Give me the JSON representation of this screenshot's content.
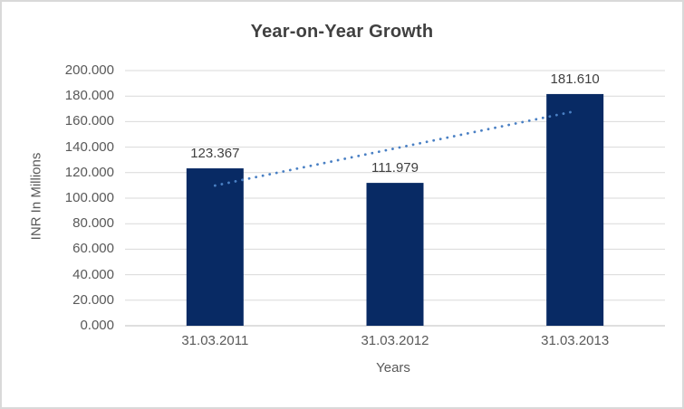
{
  "chart_data": {
    "type": "bar",
    "title": "Year-on-Year Growth",
    "categories": [
      "31.03.2011",
      "31.03.2012",
      "31.03.2013"
    ],
    "values": [
      123.367,
      111.979,
      181.61
    ],
    "data_labels": [
      "123.367",
      "111.979",
      "181.610"
    ],
    "xlabel": "Years",
    "ylabel": "INR In Millions",
    "ylim": [
      0,
      200
    ],
    "ytick_step": 20,
    "ytick_labels": [
      "0.000",
      "20.000",
      "40.000",
      "60.000",
      "80.000",
      "100.000",
      "120.000",
      "140.000",
      "160.000",
      "180.000",
      "200.000"
    ],
    "grid": true,
    "legend": "none",
    "trendline": {
      "type": "linear",
      "style": "dotted"
    },
    "colors": {
      "bar": "#082a64",
      "trendline": "#4a80c4",
      "gridline": "#d9d9d9",
      "axis_line": "#bfbfbf",
      "border": "#d9d9d9",
      "background": "#ffffff",
      "title_text": "#404040",
      "axis_text": "#595959",
      "data_label_text": "#404040"
    }
  }
}
